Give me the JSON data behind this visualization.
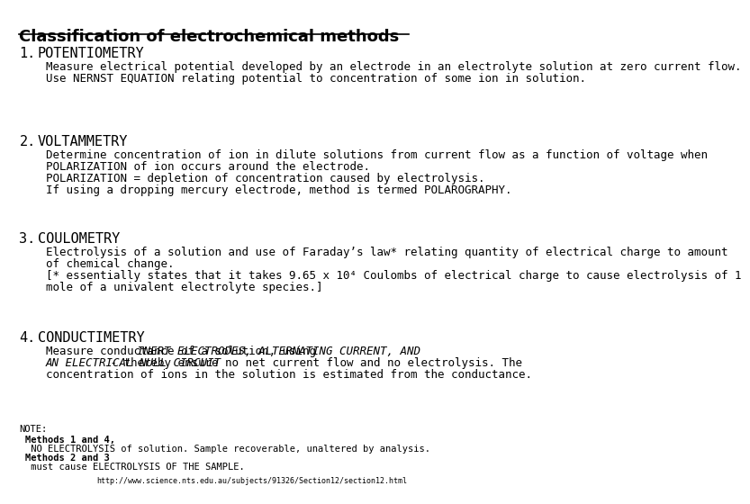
{
  "title": "Classification of electrochemical methods",
  "background_color": "#ffffff",
  "text_color": "#000000",
  "sections": [
    {
      "number": "1.",
      "heading": "POTENTIOMETRY",
      "lines": [
        {
          "text": "Measure electrical potential developed by an electrode in an electrolyte solution at zero current flow.",
          "style": "normal"
        },
        {
          "text": "Use NERNST EQUATION relating potential to concentration of some ion in solution.",
          "style": "normal"
        }
      ]
    },
    {
      "number": "2.",
      "heading": "VOLTAMMETRY",
      "lines": [
        {
          "text": "Determine concentration of ion in dilute solutions from current flow as a function of voltage when",
          "style": "normal"
        },
        {
          "text": "POLARIZATION of ion occurs around the electrode.",
          "style": "normal"
        },
        {
          "text": "POLARIZATION = depletion of concentration caused by electrolysis.",
          "style": "normal"
        },
        {
          "text": "If using a dropping mercury electrode, method is termed POLAROGRAPHY.",
          "style": "normal"
        }
      ]
    },
    {
      "number": "3.",
      "heading": "COULOMETRY",
      "lines": [
        {
          "text": "Electrolysis of a solution and use of Faraday’s law* relating quantity of electrical charge to amount",
          "style": "normal"
        },
        {
          "text": "of chemical change.",
          "style": "normal"
        },
        {
          "text": "[* essentially states that it takes 9.65 x 10⁴ Coulombs of electrical charge to cause electrolysis of 1",
          "style": "normal"
        },
        {
          "text": "mole of a univalent electrolyte species.]",
          "style": "normal"
        }
      ]
    },
    {
      "number": "4.",
      "heading": "CONDUCTIMETRY",
      "lines": [
        {
          "text": "Measure conductance of a solution, using INERT ELECTRODES, ALTERNATING CURRENT, AND",
          "style": "italic_mixed"
        },
        {
          "text": "AN ELECTRICAL NULL CIRCUIT - thereby ensure no net current flow and no electrolysis. The",
          "style": "italic_mixed"
        },
        {
          "text": "concentration of ions in the solution is estimated from the conductance.",
          "style": "normal"
        }
      ]
    }
  ],
  "note_title": "NOTE:",
  "note_lines": [
    {
      "text": "Methods 1 and 4,",
      "bold": true
    },
    {
      "text": " NO ELECTROLYSIS of solution. Sample recoverable, unaltered by analysis.",
      "bold": false
    },
    {
      "text": "Methods 2 and 3",
      "bold": true
    },
    {
      "text": " must cause ELECTROLYSIS OF THE SAMPLE.",
      "bold": false
    }
  ],
  "url": "http://www.science.nts.edu.au/subjects/91326/Section12/section12.html",
  "title_fontsize": 13,
  "heading_fontsize": 11,
  "body_fontsize": 9,
  "note_fontsize": 7.5
}
